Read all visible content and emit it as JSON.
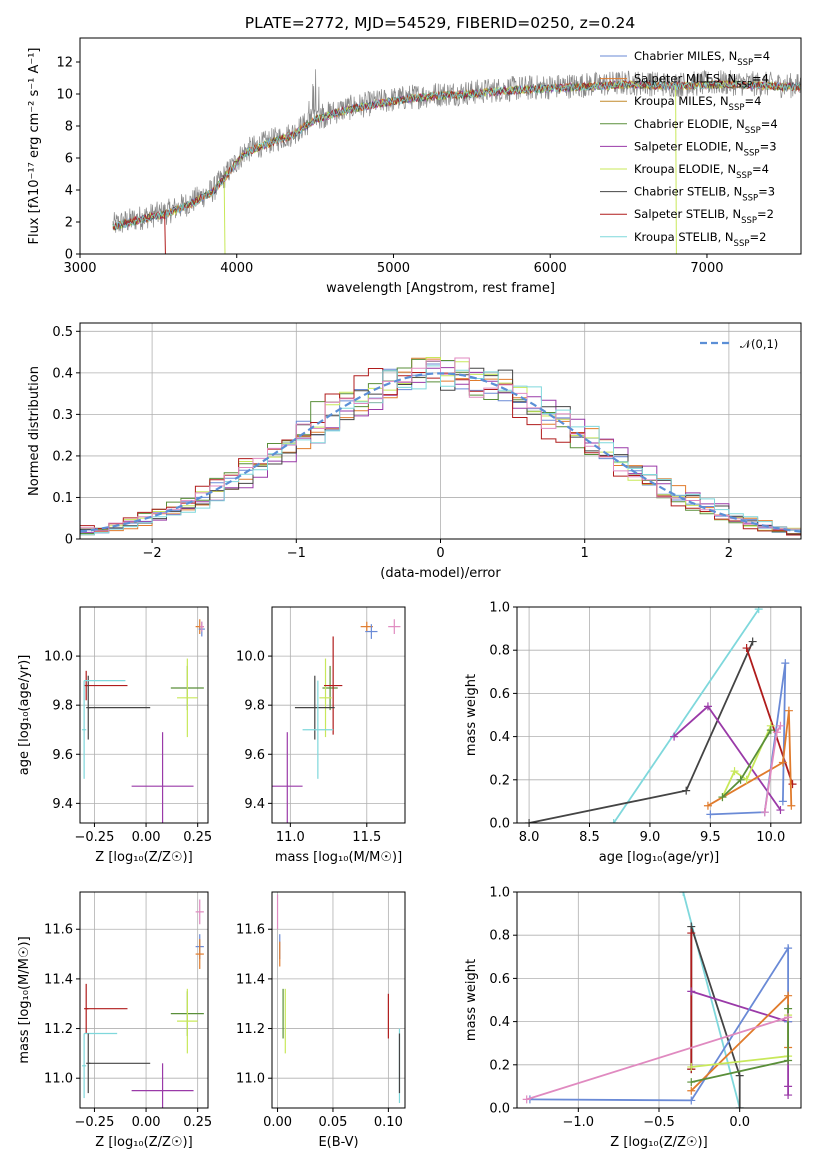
{
  "figure": {
    "title": "PLATE=2772, MJD=54529, FIBERID=0250, z=0.24",
    "colors": {
      "c0": "#6a8ad6",
      "c1": "#e07b2c",
      "c2": "#c28a2b",
      "c3": "#5a8f3a",
      "c4": "#9a3aa8",
      "c5": "#c8e85a",
      "c6": "#444444",
      "c7": "#b01c1c",
      "c8": "#7fd8dc",
      "c9": "#e08ac0"
    }
  },
  "chart_data": [
    {
      "id": "spectrum",
      "type": "line",
      "title": "PLATE=2772, MJD=54529, FIBERID=0250, z=0.24",
      "xlabel": "wavelength [Angstrom, rest frame]",
      "ylabel": "Flux [fλ10⁻¹⁷ erg cm⁻² s⁻¹ A⁻¹]",
      "xlim": [
        3000,
        7600
      ],
      "ylim": [
        0,
        13.5
      ],
      "xticks": [
        3000,
        4000,
        5000,
        6000,
        7000
      ],
      "yticks": [
        0,
        2,
        4,
        6,
        8,
        10,
        12
      ],
      "grid": false,
      "legend_position": "top-right",
      "data_start": 3210,
      "data_end": 7600,
      "data_envelope": {
        "x": [
          3210,
          3400,
          3550,
          3700,
          3850,
          3950,
          4050,
          4200,
          4350,
          4500,
          4700,
          4900,
          5100,
          5300,
          5500,
          5700,
          5900,
          6100,
          6300,
          6500,
          6800,
          7100,
          7400,
          7600
        ],
        "y": [
          1.8,
          2.3,
          2.6,
          3.2,
          4.0,
          5.2,
          6.4,
          7.0,
          7.5,
          8.5,
          9.1,
          9.5,
          9.8,
          10.0,
          10.1,
          10.3,
          10.4,
          10.5,
          10.6,
          10.7,
          10.6,
          10.7,
          10.6,
          10.5
        ]
      },
      "series": [
        {
          "name": "Chabrier MILES, N",
          "sub": "SSP",
          "suffix": "=4",
          "color": "#6a8ad6"
        },
        {
          "name": "Salpeter MILES, N",
          "sub": "SSP",
          "suffix": "=4",
          "color": "#e07b2c"
        },
        {
          "name": "Kroupa MILES, N",
          "sub": "SSP",
          "suffix": "=4",
          "color": "#c28a2b"
        },
        {
          "name": "Chabrier ELODIE, N",
          "sub": "SSP",
          "suffix": "=4",
          "color": "#5a8f3a"
        },
        {
          "name": "Salpeter ELODIE, N",
          "sub": "SSP",
          "suffix": "=3",
          "color": "#9a3aa8"
        },
        {
          "name": "Kroupa ELODIE, N",
          "sub": "SSP",
          "suffix": "=4",
          "color": "#c8e85a"
        },
        {
          "name": "Chabrier STELIB, N",
          "sub": "SSP",
          "suffix": "=3",
          "color": "#444444"
        },
        {
          "name": "Salpeter STELIB, N",
          "sub": "SSP",
          "suffix": "=2",
          "color": "#b01c1c"
        },
        {
          "name": "Kroupa STELIB, N",
          "sub": "SSP",
          "suffix": "=2",
          "color": "#7fd8dc"
        }
      ]
    },
    {
      "id": "histogram",
      "type": "line",
      "xlabel": "(data-model)/error",
      "ylabel": "Normed distribution",
      "xlim": [
        -2.5,
        2.5
      ],
      "ylim": [
        0,
        0.52
      ],
      "xticks": [
        -2,
        -1,
        0,
        1,
        2
      ],
      "yticks": [
        0.0,
        0.1,
        0.2,
        0.3,
        0.4,
        0.5
      ],
      "grid": true,
      "legend_position": "top-right",
      "legend": "𝒩(0,1)",
      "normal_curve_color": "#5b8fd6",
      "bin_width": 0.1,
      "series": [
        {
          "color": "#6a8ad6",
          "offset": 0.0
        },
        {
          "color": "#e07b2c",
          "offset": 0.02
        },
        {
          "color": "#5a8f3a",
          "offset": -0.02
        },
        {
          "color": "#9a3aa8",
          "offset": 0.03
        },
        {
          "color": "#c8e85a",
          "offset": -0.015
        },
        {
          "color": "#444444",
          "offset": 0.015
        },
        {
          "color": "#b01c1c",
          "offset": -0.03
        },
        {
          "color": "#7fd8dc",
          "offset": 0.025
        },
        {
          "color": "#e08ac0",
          "offset": -0.01
        }
      ]
    },
    {
      "id": "age_vs_Z",
      "type": "scatter",
      "xlabel": "Z [log₁₀(Z/Z☉)]",
      "ylabel": "age  [log₁₀(age/yr)]",
      "xlim": [
        -0.32,
        0.3
      ],
      "ylim": [
        9.32,
        10.2
      ],
      "xticks": [
        -0.25,
        0.0,
        0.25
      ],
      "xtick_labels": [
        "−0.25",
        "0.00",
        "0.25"
      ],
      "yticks": [
        9.4,
        9.6,
        9.8,
        10.0
      ],
      "yticklabels": [
        "9.4",
        "9.6",
        "9.8",
        "10.0"
      ],
      "grid": true,
      "points": [
        {
          "x": 0.26,
          "y": 10.12,
          "xerr": 0.02,
          "yerr": 0.03,
          "color": "#e07b2c"
        },
        {
          "x": 0.27,
          "y": 10.11,
          "xerr": 0.015,
          "yerr": 0.03,
          "color": "#6a8ad6"
        },
        {
          "x": 0.27,
          "y": 10.12,
          "xerr": 0.01,
          "yerr": 0.02,
          "color": "#e08ac0"
        },
        {
          "x": 0.2,
          "y": 9.87,
          "xerr": 0.08,
          "yerr": 0.09,
          "color": "#5a8f3a"
        },
        {
          "x": 0.2,
          "y": 9.83,
          "xerr": 0.05,
          "yerr": 0.16,
          "color": "#c8e85a"
        },
        {
          "x": -0.29,
          "y": 9.88,
          "xerr": 0.01,
          "yerr": 0.06,
          "color": "#b01c1c"
        },
        {
          "x": -0.19,
          "y": 9.88,
          "xerr": 0.1,
          "yerr": 0.0,
          "color": "#b01c1c"
        },
        {
          "x": -0.28,
          "y": 9.79,
          "xerr": 0.01,
          "yerr": 0.13,
          "color": "#444444"
        },
        {
          "x": -0.13,
          "y": 9.79,
          "xerr": 0.15,
          "yerr": 0.0,
          "color": "#444444"
        },
        {
          "x": -0.3,
          "y": 9.7,
          "xerr": 0.01,
          "yerr": 0.2,
          "color": "#7fd8dc"
        },
        {
          "x": -0.2,
          "y": 9.9,
          "xerr": 0.1,
          "yerr": 0.0,
          "color": "#7fd8dc"
        },
        {
          "x": 0.08,
          "y": 9.47,
          "xerr": 0.15,
          "yerr": 0.22,
          "color": "#9a3aa8"
        }
      ]
    },
    {
      "id": "age_vs_mass",
      "type": "scatter",
      "xlabel": "mass [log₁₀(M/M☉)]",
      "xlim": [
        10.88,
        11.75
      ],
      "ylim": [
        9.32,
        10.2
      ],
      "xticks": [
        11.0,
        11.5
      ],
      "xtick_labels": [
        "11.0",
        "11.5"
      ],
      "yticks": [
        9.4,
        9.6,
        9.8,
        10.0
      ],
      "yticklabels": [
        "9.4",
        "9.6",
        "9.8",
        "10.0"
      ],
      "grid": true,
      "points": [
        {
          "x": 11.5,
          "y": 10.12,
          "xerr": 0.04,
          "yerr": 0.02,
          "color": "#e07b2c"
        },
        {
          "x": 11.53,
          "y": 10.1,
          "xerr": 0.04,
          "yerr": 0.03,
          "color": "#6a8ad6"
        },
        {
          "x": 11.68,
          "y": 10.12,
          "xerr": 0.04,
          "yerr": 0.03,
          "color": "#e08ac0"
        },
        {
          "x": 11.26,
          "y": 9.87,
          "xerr": 0.05,
          "yerr": 0.09,
          "color": "#5a8f3a"
        },
        {
          "x": 11.23,
          "y": 9.83,
          "xerr": 0.04,
          "yerr": 0.16,
          "color": "#c8e85a"
        },
        {
          "x": 11.28,
          "y": 9.88,
          "xerr": 0.06,
          "yerr": 0.2,
          "color": "#b01c1c"
        },
        {
          "x": 11.16,
          "y": 9.79,
          "xerr": 0.13,
          "yerr": 0.13,
          "color": "#444444"
        },
        {
          "x": 11.18,
          "y": 9.7,
          "xerr": 0.1,
          "yerr": 0.2,
          "color": "#7fd8dc"
        },
        {
          "x": 10.98,
          "y": 9.47,
          "xerr": 0.1,
          "yerr": 0.22,
          "color": "#9a3aa8"
        }
      ]
    },
    {
      "id": "mass_weight_vs_age",
      "type": "line",
      "xlabel": "age  [log₁₀(age/yr)]",
      "ylabel": "mass weight",
      "xlim": [
        7.9,
        10.25
      ],
      "ylim": [
        0,
        1.0
      ],
      "xticks": [
        8.0,
        8.5,
        9.0,
        9.5,
        10.0
      ],
      "xtick_labels": [
        "8.0",
        "8.5",
        "9.0",
        "9.5",
        "10.0"
      ],
      "yticks": [
        0.0,
        0.2,
        0.4,
        0.6,
        0.8,
        1.0
      ],
      "yticklabels": [
        "0.0",
        "0.2",
        "0.4",
        "0.6",
        "0.8",
        "1.0"
      ],
      "grid": true,
      "series": [
        {
          "color": "#7fd8dc",
          "x": [
            8.7,
            9.9
          ],
          "y": [
            0.0,
            0.99
          ]
        },
        {
          "color": "#444444",
          "x": [
            8.0,
            9.3,
            9.85
          ],
          "y": [
            0.0,
            0.15,
            0.84
          ]
        },
        {
          "color": "#b01c1c",
          "x": [
            9.8,
            10.18
          ],
          "y": [
            0.81,
            0.18
          ]
        },
        {
          "color": "#9a3aa8",
          "x": [
            9.2,
            9.48,
            10.08
          ],
          "y": [
            0.4,
            0.54,
            0.06
          ]
        },
        {
          "color": "#6a8ad6",
          "x": [
            9.5,
            9.95,
            10.12,
            10.1
          ],
          "y": [
            0.04,
            0.05,
            0.74,
            0.1
          ]
        },
        {
          "color": "#e07b2c",
          "x": [
            9.48,
            10.1,
            10.15,
            10.17
          ],
          "y": [
            0.08,
            0.28,
            0.52,
            0.08
          ]
        },
        {
          "color": "#c8e85a",
          "x": [
            9.6,
            9.7,
            9.8,
            10.0
          ],
          "y": [
            0.12,
            0.24,
            0.2,
            0.45
          ]
        },
        {
          "color": "#5a8f3a",
          "x": [
            9.6,
            9.75,
            10.0
          ],
          "y": [
            0.12,
            0.2,
            0.43
          ]
        },
        {
          "color": "#e08ac0",
          "x": [
            9.95,
            10.05,
            10.08
          ],
          "y": [
            0.05,
            0.42,
            0.45
          ]
        }
      ]
    },
    {
      "id": "mass_vs_Z",
      "type": "scatter",
      "xlabel": "Z [log₁₀(Z/Z☉)]",
      "ylabel": "mass [log₁₀(M/M☉)]",
      "xlim": [
        -0.32,
        0.3
      ],
      "ylim": [
        10.88,
        11.75
      ],
      "xticks": [
        -0.25,
        0.0,
        0.25
      ],
      "xtick_labels": [
        "−0.25",
        "0.00",
        "0.25"
      ],
      "yticks": [
        11.0,
        11.2,
        11.4,
        11.6
      ],
      "yticklabels": [
        "11.0",
        "11.2",
        "11.4",
        "11.6"
      ],
      "grid": true,
      "points": [
        {
          "x": 0.26,
          "y": 11.67,
          "xerr": 0.02,
          "yerr": 0.05,
          "color": "#e08ac0"
        },
        {
          "x": 0.26,
          "y": 11.53,
          "xerr": 0.02,
          "yerr": 0.05,
          "color": "#6a8ad6"
        },
        {
          "x": 0.26,
          "y": 11.5,
          "xerr": 0.02,
          "yerr": 0.06,
          "color": "#e07b2c"
        },
        {
          "x": 0.2,
          "y": 11.26,
          "xerr": 0.08,
          "yerr": 0.09,
          "color": "#5a8f3a"
        },
        {
          "x": 0.2,
          "y": 11.23,
          "xerr": 0.05,
          "yerr": 0.13,
          "color": "#c8e85a"
        },
        {
          "x": -0.19,
          "y": 11.28,
          "xerr": 0.1,
          "yerr": 0.0,
          "color": "#b01c1c"
        },
        {
          "x": -0.29,
          "y": 11.28,
          "xerr": 0.01,
          "yerr": 0.1,
          "color": "#b01c1c"
        },
        {
          "x": -0.22,
          "y": 11.18,
          "xerr": 0.08,
          "yerr": 0.0,
          "color": "#7fd8dc"
        },
        {
          "x": -0.3,
          "y": 11.05,
          "xerr": 0.01,
          "yerr": 0.13,
          "color": "#7fd8dc"
        },
        {
          "x": -0.13,
          "y": 11.06,
          "xerr": 0.15,
          "yerr": 0.0,
          "color": "#444444"
        },
        {
          "x": -0.28,
          "y": 11.06,
          "xerr": 0.01,
          "yerr": 0.12,
          "color": "#444444"
        },
        {
          "x": 0.08,
          "y": 10.95,
          "xerr": 0.15,
          "yerr": 0.11,
          "color": "#9a3aa8"
        }
      ]
    },
    {
      "id": "mass_vs_ebv",
      "type": "scatter",
      "xlabel": "E(B-V)",
      "xlim": [
        -0.005,
        0.115
      ],
      "ylim": [
        10.88,
        11.75
      ],
      "xticks": [
        0.0,
        0.05,
        0.1
      ],
      "xtick_labels": [
        "0.00",
        "0.05",
        "0.10"
      ],
      "yticks": [
        11.0,
        11.2,
        11.4,
        11.6
      ],
      "yticklabels": [
        "11.0",
        "11.2",
        "11.4",
        "11.6"
      ],
      "grid": true,
      "points": [
        {
          "x": 0.0,
          "y": 11.67,
          "xerr": 0.0,
          "yerr": 0.07,
          "color": "#e08ac0"
        },
        {
          "x": 0.002,
          "y": 11.53,
          "xerr": 0.0,
          "yerr": 0.05,
          "color": "#6a8ad6"
        },
        {
          "x": 0.002,
          "y": 11.5,
          "xerr": 0.0,
          "yerr": 0.05,
          "color": "#e07b2c"
        },
        {
          "x": 0.005,
          "y": 11.26,
          "xerr": 0.0,
          "yerr": 0.1,
          "color": "#5a8f3a"
        },
        {
          "x": 0.007,
          "y": 11.23,
          "xerr": 0.0,
          "yerr": 0.13,
          "color": "#c8e85a"
        },
        {
          "x": 0.1,
          "y": 11.25,
          "xerr": 0.0,
          "yerr": 0.09,
          "color": "#b01c1c"
        },
        {
          "x": 0.11,
          "y": 11.05,
          "xerr": 0.0,
          "yerr": 0.15,
          "color": "#7fd8dc"
        },
        {
          "x": 0.11,
          "y": 11.06,
          "xerr": 0.0,
          "yerr": 0.12,
          "color": "#444444"
        }
      ]
    },
    {
      "id": "mass_weight_vs_Z",
      "type": "line",
      "xlabel": "Z [log₁₀(Z/Z☉)]",
      "ylabel": "mass weight",
      "xlim": [
        -1.38,
        0.38
      ],
      "ylim": [
        0,
        1.0
      ],
      "xticks": [
        -1.0,
        -0.5,
        0.0
      ],
      "xtick_labels": [
        "−1.0",
        "−0.5",
        "0.0"
      ],
      "yticks": [
        0.0,
        0.2,
        0.4,
        0.6,
        0.8,
        1.0
      ],
      "yticklabels": [
        "0.0",
        "0.2",
        "0.4",
        "0.6",
        "0.8",
        "1.0"
      ],
      "grid": true,
      "series": [
        {
          "color": "#7fd8dc",
          "x": [
            -0.35,
            0.0
          ],
          "y": [
            1.0,
            0.0
          ]
        },
        {
          "color": "#444444",
          "x": [
            -0.3,
            -0.3,
            0.0,
            0.0
          ],
          "y": [
            0.18,
            0.84,
            0.15,
            0.0
          ]
        },
        {
          "color": "#b01c1c",
          "x": [
            -0.3,
            -0.3
          ],
          "y": [
            0.18,
            0.81
          ]
        },
        {
          "color": "#9a3aa8",
          "x": [
            -0.3,
            0.3,
            0.3,
            0.3
          ],
          "y": [
            0.54,
            0.4,
            0.1,
            0.06
          ]
        },
        {
          "color": "#6a8ad6",
          "x": [
            -1.3,
            -0.3,
            0.3,
            0.3
          ],
          "y": [
            0.04,
            0.035,
            0.74,
            0.4
          ]
        },
        {
          "color": "#e07b2c",
          "x": [
            -0.3,
            0.3,
            0.3
          ],
          "y": [
            0.08,
            0.52,
            0.28
          ]
        },
        {
          "color": "#c8e85a",
          "x": [
            -0.3,
            0.3,
            0.3
          ],
          "y": [
            0.19,
            0.24,
            0.43
          ]
        },
        {
          "color": "#5a8f3a",
          "x": [
            -0.3,
            0.3,
            0.3
          ],
          "y": [
            0.12,
            0.22,
            0.46
          ]
        },
        {
          "color": "#e08ac0",
          "x": [
            -1.32,
            0.3
          ],
          "y": [
            0.04,
            0.42
          ]
        }
      ]
    }
  ]
}
